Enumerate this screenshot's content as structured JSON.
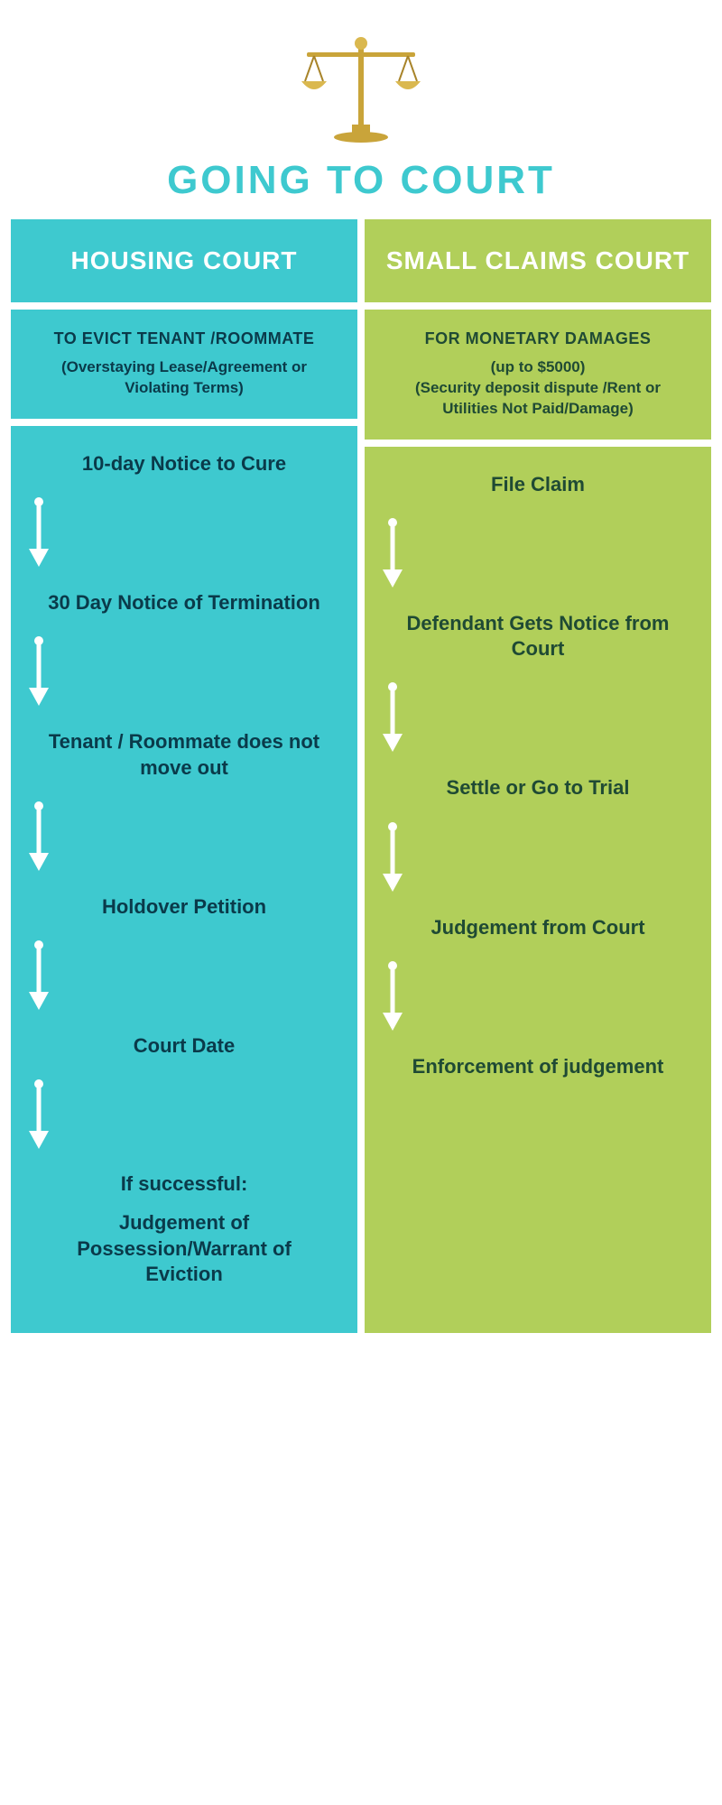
{
  "title": "GOING TO COURT",
  "title_color": "#3ec9cf",
  "columns": {
    "left": {
      "bg": "#3ec9cf",
      "text_color": "#0a3a4a",
      "header_text_color": "#ffffff",
      "header": "HOUSING COURT",
      "sub_title": "TO EVICT TENANT /ROOMMATE",
      "sub_desc": "(Overstaying Lease/Agreement or Violating Terms)",
      "steps": [
        "10-day Notice to Cure",
        "30 Day Notice of Termination",
        "Tenant / Roommate does not move out",
        "Holdover Petition",
        "Court Date"
      ],
      "final_label": "If successful:",
      "final_text": "Judgement of Possession/Warrant of Eviction",
      "arrow_color": "#ffffff"
    },
    "right": {
      "bg": "#b1cf5a",
      "text_color": "#1f4a34",
      "header_text_color": "#ffffff",
      "header": "SMALL CLAIMS COURT",
      "sub_title": "FOR MONETARY DAMAGES",
      "sub_desc": "(up to $5000)\n(Security deposit dispute /Rent or Utilities Not Paid/Damage)",
      "steps": [
        "File Claim",
        "Defendant Gets Notice from Court",
        "Settle or Go to Trial",
        "Judgement from Court",
        "Enforcement of judgement"
      ],
      "arrow_color": "#ffffff"
    }
  },
  "scales_colors": {
    "gold": "#c9a43a",
    "gold_light": "#dab84f",
    "gold_dark": "#a8842a"
  }
}
